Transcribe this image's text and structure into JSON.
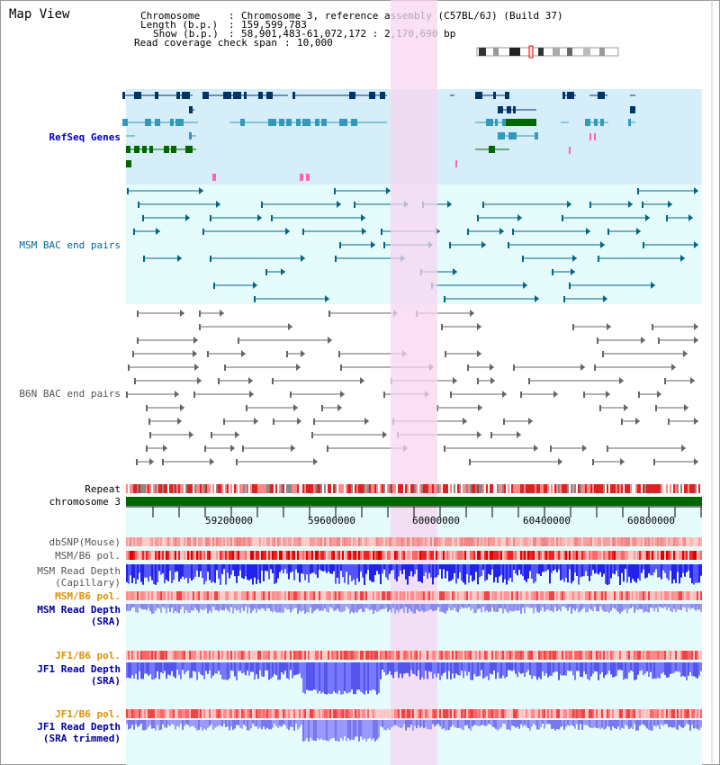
{
  "title": "Map View",
  "header": {
    "chromosome_label": "Chromosome",
    "chromosome_value": "Chromosome 3, reference assembly (C57BL/6J) (Build 37)",
    "length_label": "Length (b.p.)",
    "length_value": "159,599,783",
    "show_label": "Show (b.p.)",
    "show_value": "58,901,483-61,072,172 : 2,170,690 bp",
    "coverage_label": "Read coverage check span",
    "coverage_value": "10,000"
  },
  "tracks": {
    "refseq": "RefSeq Genes",
    "msm_bac": "MSM BAC end pairs",
    "b6n_bac": "B6N BAC end pairs",
    "repeat": "Repeat",
    "chromosome": "chromosome 3",
    "dbsnp": "dbSNP(Mouse)",
    "msm_b6_pol": "MSM/B6 pol.",
    "msm_read_depth_cap_1": "MSM Read Depth",
    "msm_read_depth_cap_2": "(Capillary)",
    "msm_b6_pol_2": "MSM/B6 pol.",
    "msm_read_depth_sra_1": "MSM Read Depth",
    "msm_read_depth_sra_2": "(SRA)",
    "jf1_b6_pol": "JF1/B6 pol.",
    "jf1_read_depth_sra_1": "JF1 Read Depth",
    "jf1_read_depth_sra_2": "(SRA)",
    "jf1_b6_pol_2": "JF1/B6 pol.",
    "jf1_read_depth_trim_1": "JF1 Read Depth",
    "jf1_read_depth_trim_2": "(SRA trimmed)"
  },
  "axis": {
    "ticks": [
      "59200000",
      "59600000",
      "60000000",
      "60400000",
      "60800000"
    ]
  },
  "colors": {
    "refseq_bg": "#d6eefa",
    "bac_bg": "#e6fbfb",
    "highlight": "#f7d6f0",
    "chromosome_bar": "#006600",
    "gene_dark": "#003366",
    "gene_mid": "#3399bb",
    "gene_green": "#006600",
    "bac_teal": "#006688",
    "bac_gray": "#666666",
    "depth_blue": "#3333ff",
    "depth_light": "#8888ee"
  }
}
